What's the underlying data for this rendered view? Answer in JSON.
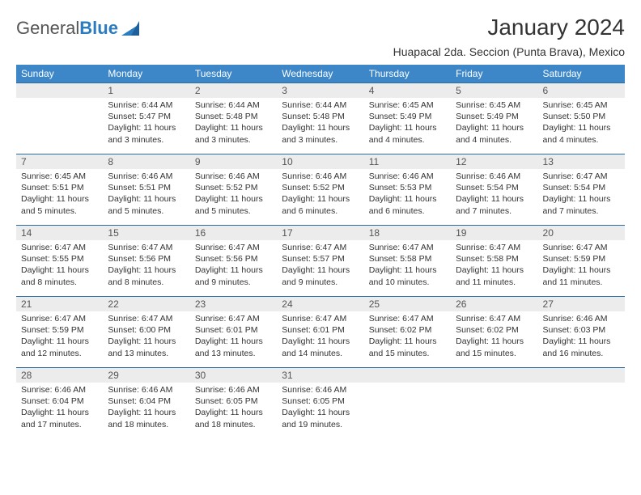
{
  "brand": {
    "word1": "General",
    "word2": "Blue"
  },
  "title": "January 2024",
  "location": "Huapacal 2da. Seccion (Punta Brava), Mexico",
  "colors": {
    "header_bg": "#3d87c9",
    "header_text": "#ffffff",
    "daynum_bg": "#ececec",
    "daynum_border": "#2b6ca3",
    "body_text": "#333333",
    "brand_gray": "#555555",
    "brand_blue": "#2b7bbf"
  },
  "typography": {
    "title_fontsize": 28,
    "location_fontsize": 14,
    "dow_fontsize": 12,
    "cell_fontsize": 10.5
  },
  "dow": [
    "Sunday",
    "Monday",
    "Tuesday",
    "Wednesday",
    "Thursday",
    "Friday",
    "Saturday"
  ],
  "weeks": [
    [
      {
        "n": "",
        "lines": [
          "",
          "",
          "",
          ""
        ]
      },
      {
        "n": "1",
        "lines": [
          "Sunrise: 6:44 AM",
          "Sunset: 5:47 PM",
          "Daylight: 11 hours",
          "and 3 minutes."
        ]
      },
      {
        "n": "2",
        "lines": [
          "Sunrise: 6:44 AM",
          "Sunset: 5:48 PM",
          "Daylight: 11 hours",
          "and 3 minutes."
        ]
      },
      {
        "n": "3",
        "lines": [
          "Sunrise: 6:44 AM",
          "Sunset: 5:48 PM",
          "Daylight: 11 hours",
          "and 3 minutes."
        ]
      },
      {
        "n": "4",
        "lines": [
          "Sunrise: 6:45 AM",
          "Sunset: 5:49 PM",
          "Daylight: 11 hours",
          "and 4 minutes."
        ]
      },
      {
        "n": "5",
        "lines": [
          "Sunrise: 6:45 AM",
          "Sunset: 5:49 PM",
          "Daylight: 11 hours",
          "and 4 minutes."
        ]
      },
      {
        "n": "6",
        "lines": [
          "Sunrise: 6:45 AM",
          "Sunset: 5:50 PM",
          "Daylight: 11 hours",
          "and 4 minutes."
        ]
      }
    ],
    [
      {
        "n": "7",
        "lines": [
          "Sunrise: 6:45 AM",
          "Sunset: 5:51 PM",
          "Daylight: 11 hours",
          "and 5 minutes."
        ]
      },
      {
        "n": "8",
        "lines": [
          "Sunrise: 6:46 AM",
          "Sunset: 5:51 PM",
          "Daylight: 11 hours",
          "and 5 minutes."
        ]
      },
      {
        "n": "9",
        "lines": [
          "Sunrise: 6:46 AM",
          "Sunset: 5:52 PM",
          "Daylight: 11 hours",
          "and 5 minutes."
        ]
      },
      {
        "n": "10",
        "lines": [
          "Sunrise: 6:46 AM",
          "Sunset: 5:52 PM",
          "Daylight: 11 hours",
          "and 6 minutes."
        ]
      },
      {
        "n": "11",
        "lines": [
          "Sunrise: 6:46 AM",
          "Sunset: 5:53 PM",
          "Daylight: 11 hours",
          "and 6 minutes."
        ]
      },
      {
        "n": "12",
        "lines": [
          "Sunrise: 6:46 AM",
          "Sunset: 5:54 PM",
          "Daylight: 11 hours",
          "and 7 minutes."
        ]
      },
      {
        "n": "13",
        "lines": [
          "Sunrise: 6:47 AM",
          "Sunset: 5:54 PM",
          "Daylight: 11 hours",
          "and 7 minutes."
        ]
      }
    ],
    [
      {
        "n": "14",
        "lines": [
          "Sunrise: 6:47 AM",
          "Sunset: 5:55 PM",
          "Daylight: 11 hours",
          "and 8 minutes."
        ]
      },
      {
        "n": "15",
        "lines": [
          "Sunrise: 6:47 AM",
          "Sunset: 5:56 PM",
          "Daylight: 11 hours",
          "and 8 minutes."
        ]
      },
      {
        "n": "16",
        "lines": [
          "Sunrise: 6:47 AM",
          "Sunset: 5:56 PM",
          "Daylight: 11 hours",
          "and 9 minutes."
        ]
      },
      {
        "n": "17",
        "lines": [
          "Sunrise: 6:47 AM",
          "Sunset: 5:57 PM",
          "Daylight: 11 hours",
          "and 9 minutes."
        ]
      },
      {
        "n": "18",
        "lines": [
          "Sunrise: 6:47 AM",
          "Sunset: 5:58 PM",
          "Daylight: 11 hours",
          "and 10 minutes."
        ]
      },
      {
        "n": "19",
        "lines": [
          "Sunrise: 6:47 AM",
          "Sunset: 5:58 PM",
          "Daylight: 11 hours",
          "and 11 minutes."
        ]
      },
      {
        "n": "20",
        "lines": [
          "Sunrise: 6:47 AM",
          "Sunset: 5:59 PM",
          "Daylight: 11 hours",
          "and 11 minutes."
        ]
      }
    ],
    [
      {
        "n": "21",
        "lines": [
          "Sunrise: 6:47 AM",
          "Sunset: 5:59 PM",
          "Daylight: 11 hours",
          "and 12 minutes."
        ]
      },
      {
        "n": "22",
        "lines": [
          "Sunrise: 6:47 AM",
          "Sunset: 6:00 PM",
          "Daylight: 11 hours",
          "and 13 minutes."
        ]
      },
      {
        "n": "23",
        "lines": [
          "Sunrise: 6:47 AM",
          "Sunset: 6:01 PM",
          "Daylight: 11 hours",
          "and 13 minutes."
        ]
      },
      {
        "n": "24",
        "lines": [
          "Sunrise: 6:47 AM",
          "Sunset: 6:01 PM",
          "Daylight: 11 hours",
          "and 14 minutes."
        ]
      },
      {
        "n": "25",
        "lines": [
          "Sunrise: 6:47 AM",
          "Sunset: 6:02 PM",
          "Daylight: 11 hours",
          "and 15 minutes."
        ]
      },
      {
        "n": "26",
        "lines": [
          "Sunrise: 6:47 AM",
          "Sunset: 6:02 PM",
          "Daylight: 11 hours",
          "and 15 minutes."
        ]
      },
      {
        "n": "27",
        "lines": [
          "Sunrise: 6:46 AM",
          "Sunset: 6:03 PM",
          "Daylight: 11 hours",
          "and 16 minutes."
        ]
      }
    ],
    [
      {
        "n": "28",
        "lines": [
          "Sunrise: 6:46 AM",
          "Sunset: 6:04 PM",
          "Daylight: 11 hours",
          "and 17 minutes."
        ]
      },
      {
        "n": "29",
        "lines": [
          "Sunrise: 6:46 AM",
          "Sunset: 6:04 PM",
          "Daylight: 11 hours",
          "and 18 minutes."
        ]
      },
      {
        "n": "30",
        "lines": [
          "Sunrise: 6:46 AM",
          "Sunset: 6:05 PM",
          "Daylight: 11 hours",
          "and 18 minutes."
        ]
      },
      {
        "n": "31",
        "lines": [
          "Sunrise: 6:46 AM",
          "Sunset: 6:05 PM",
          "Daylight: 11 hours",
          "and 19 minutes."
        ]
      },
      {
        "n": "",
        "lines": [
          "",
          "",
          "",
          ""
        ]
      },
      {
        "n": "",
        "lines": [
          "",
          "",
          "",
          ""
        ]
      },
      {
        "n": "",
        "lines": [
          "",
          "",
          "",
          ""
        ]
      }
    ]
  ]
}
